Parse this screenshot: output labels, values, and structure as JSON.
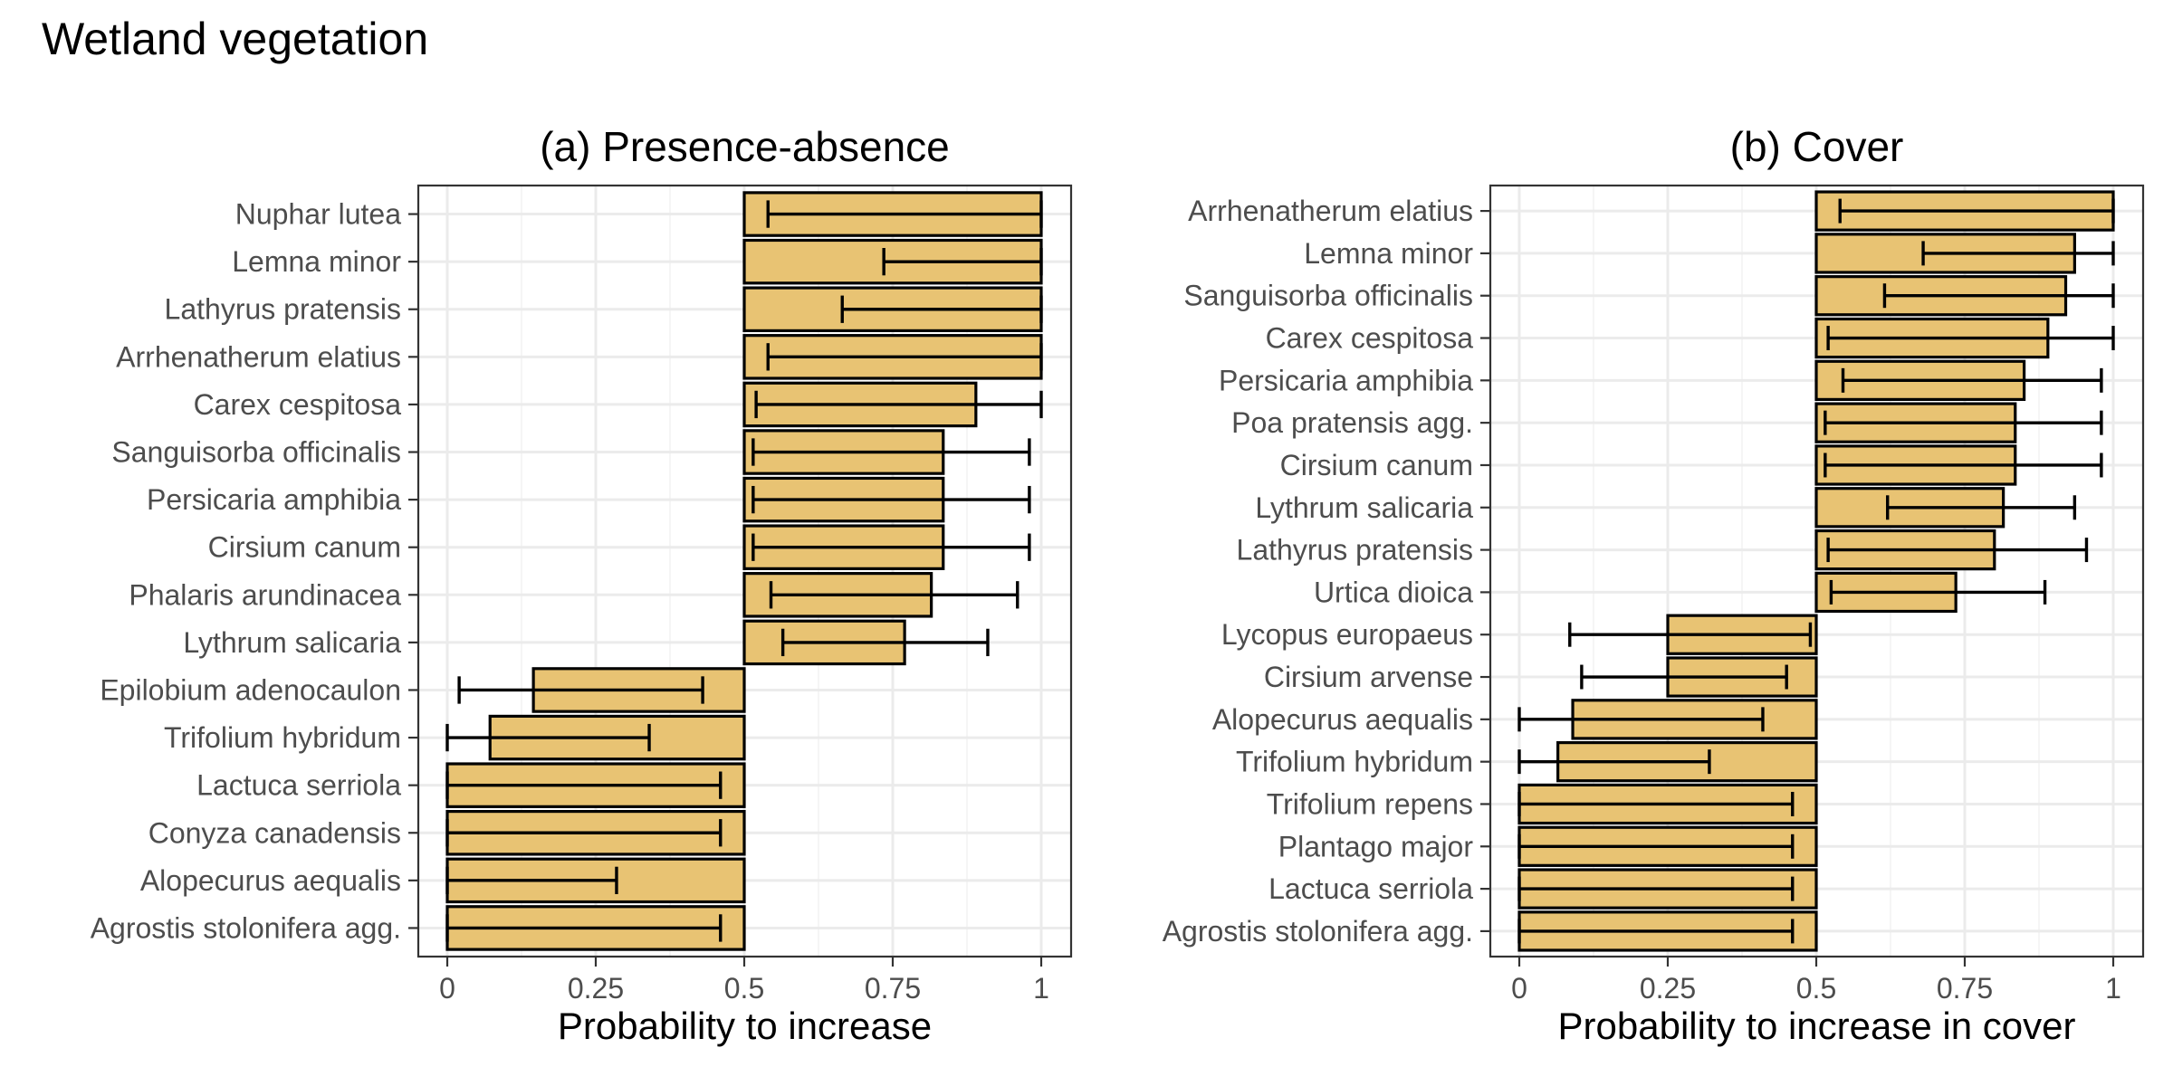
{
  "figure_title": "Wetland vegetation",
  "chart_data": [
    {
      "type": "bar",
      "orientation": "horizontal",
      "title": "(a) Presence-absence",
      "xlabel": "Probability to increase",
      "ylabel": "",
      "xlim": [
        0,
        1
      ],
      "baseline": 0.5,
      "x_ticks": [
        0,
        0.25,
        0.5,
        0.75,
        1
      ],
      "x_tick_labels": [
        "0",
        "0.25",
        "0.5",
        "0.75",
        "1"
      ],
      "grid": true,
      "bar_color": "#e8c373",
      "categories": [
        "Nuphar lutea",
        "Lemna minor",
        "Lathyrus pratensis",
        "Arrhenatherum elatius",
        "Carex cespitosa",
        "Sanguisorba officinalis",
        "Persicaria amphibia",
        "Cirsium canum",
        "Phalaris arundinacea",
        "Lythrum salicaria",
        "Epilobium adenocaulon",
        "Trifolium hybridum",
        "Lactuca serriola",
        "Conyza canadensis",
        "Alopecurus aequalis",
        "Agrostis stolonifera agg."
      ],
      "values": [
        1.0,
        1.0,
        1.0,
        1.0,
        0.89,
        0.835,
        0.835,
        0.835,
        0.815,
        0.77,
        0.145,
        0.072,
        0.0,
        0.0,
        0.0,
        0.0
      ],
      "ci_low": [
        0.54,
        0.735,
        0.665,
        0.54,
        0.52,
        0.515,
        0.515,
        0.515,
        0.545,
        0.565,
        0.02,
        0.0,
        0.0,
        0.0,
        0.0,
        0.0
      ],
      "ci_high": [
        1.0,
        1.0,
        1.0,
        1.0,
        1.0,
        0.98,
        0.98,
        0.98,
        0.96,
        0.91,
        0.43,
        0.34,
        0.46,
        0.46,
        0.285,
        0.46
      ]
    },
    {
      "type": "bar",
      "orientation": "horizontal",
      "title": "(b) Cover",
      "xlabel": "Probability to increase in cover",
      "ylabel": "",
      "xlim": [
        0,
        1
      ],
      "baseline": 0.5,
      "x_ticks": [
        0,
        0.25,
        0.5,
        0.75,
        1
      ],
      "x_tick_labels": [
        "0",
        "0.25",
        "0.5",
        "0.75",
        "1"
      ],
      "grid": true,
      "bar_color": "#e8c373",
      "categories": [
        "Arrhenatherum elatius",
        "Lemna minor",
        "Sanguisorba officinalis",
        "Carex cespitosa",
        "Persicaria amphibia",
        "Poa pratensis agg.",
        "Cirsium canum",
        "Lythrum salicaria",
        "Lathyrus pratensis",
        "Urtica dioica",
        "Lycopus europaeus",
        "Cirsium arvense",
        "Alopecurus aequalis",
        "Trifolium hybridum",
        "Trifolium repens",
        "Plantago major",
        "Lactuca serriola",
        "Agrostis stolonifera agg."
      ],
      "values": [
        1.0,
        0.935,
        0.92,
        0.89,
        0.85,
        0.835,
        0.835,
        0.815,
        0.8,
        0.735,
        0.25,
        0.25,
        0.09,
        0.065,
        0.0,
        0.0,
        0.0,
        0.0
      ],
      "ci_low": [
        0.54,
        0.68,
        0.615,
        0.52,
        0.545,
        0.515,
        0.515,
        0.62,
        0.52,
        0.525,
        0.085,
        0.105,
        0.0,
        0.0,
        0.0,
        0.0,
        0.0,
        0.0
      ],
      "ci_high": [
        1.0,
        1.0,
        1.0,
        1.0,
        0.98,
        0.98,
        0.98,
        0.935,
        0.955,
        0.885,
        0.49,
        0.45,
        0.41,
        0.32,
        0.46,
        0.46,
        0.46,
        0.46
      ]
    }
  ]
}
